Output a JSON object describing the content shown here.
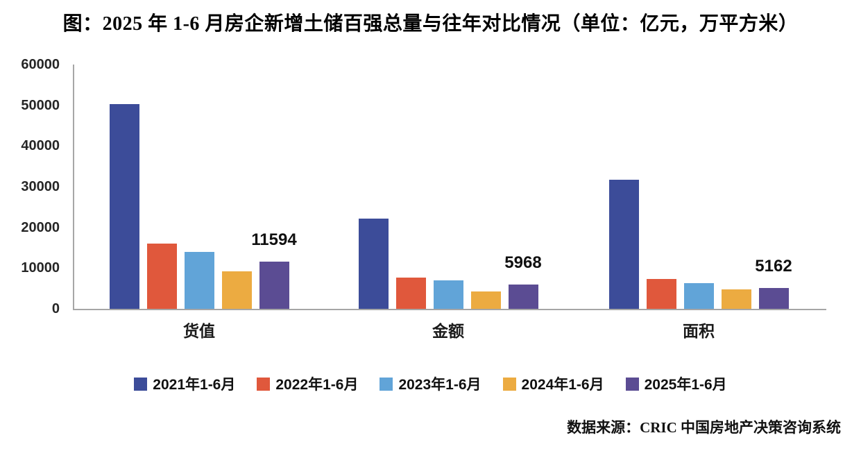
{
  "page": {
    "title": "图：2025 年 1-6 月房企新增土储百强总量与往年对比情况（单位：亿元，万平方米）",
    "source": "数据来源：CRIC 中国房地产决策咨询系统"
  },
  "chart_data": {
    "type": "bar",
    "title": "图：2025 年 1-6 月房企新增土储百强总量与往年对比情况",
    "unit_note": "单位：亿元，万平方米",
    "categories": [
      "货值",
      "金额",
      "面积"
    ],
    "series": [
      {
        "name": "2021年1-6月",
        "color": "#3c4c99",
        "values": [
          50300,
          22100,
          31700
        ]
      },
      {
        "name": "2022年1-6月",
        "color": "#e0583c",
        "values": [
          16000,
          7600,
          7300
        ]
      },
      {
        "name": "2023年1-6月",
        "color": "#61a4d8",
        "values": [
          13900,
          7000,
          6300
        ]
      },
      {
        "name": "2024年1-6月",
        "color": "#ecab41",
        "values": [
          9200,
          4200,
          4800
        ]
      },
      {
        "name": "2025年1-6月",
        "color": "#5b4c93",
        "values": [
          11594,
          5968,
          5162
        ]
      }
    ],
    "data_labels": [
      {
        "category": "货值",
        "series": "2025年1-6月",
        "text": "11594"
      },
      {
        "category": "金额",
        "series": "2025年1-6月",
        "text": "5968"
      },
      {
        "category": "面积",
        "series": "2025年1-6月",
        "text": "5162"
      }
    ],
    "ylim": [
      0,
      60000
    ],
    "yticks": [
      0,
      10000,
      20000,
      30000,
      40000,
      50000,
      60000
    ],
    "grid": false,
    "legend_position": "bottom"
  }
}
